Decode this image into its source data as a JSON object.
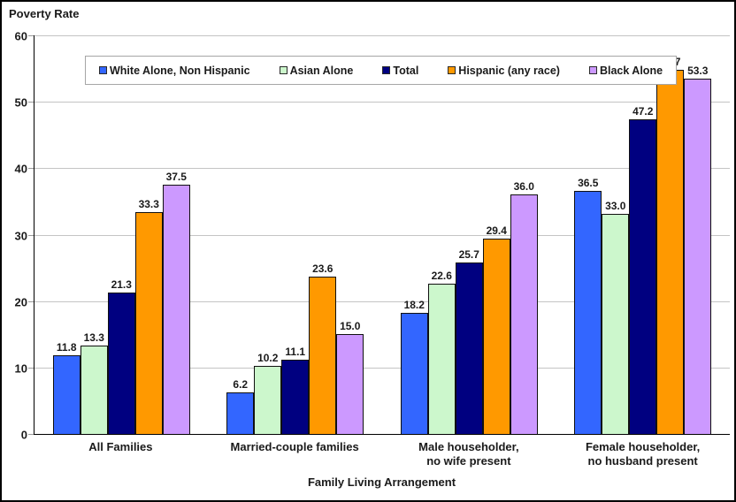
{
  "chart_data": {
    "type": "bar",
    "title": "Poverty Rate",
    "xlabel": "Family Living Arrangement",
    "ylabel": "Poverty Rate",
    "ylim": [
      0,
      60
    ],
    "yticks": [
      0,
      10,
      20,
      30,
      40,
      50,
      60
    ],
    "grid": true,
    "legend_position": "top",
    "value_labels_decimals": 1,
    "categories": [
      "All Families",
      "Married-couple families",
      "Male householder,\nno wife present",
      "Female householder,\nno husband present"
    ],
    "series": [
      {
        "name": "White Alone, Non Hispanic",
        "color": "#3366FF",
        "border": "#0b2a66",
        "values": [
          11.8,
          6.2,
          18.2,
          36.5
        ]
      },
      {
        "name": "Asian Alone",
        "color": "#CCF7CC",
        "border": "#5d7d5d",
        "values": [
          13.3,
          10.2,
          22.6,
          33.0
        ]
      },
      {
        "name": "Total",
        "color": "#000080",
        "border": "#000030",
        "values": [
          21.3,
          11.1,
          25.7,
          47.2
        ]
      },
      {
        "name": "Hispanic (any race)",
        "color": "#FF9900",
        "border": "#6b4a00",
        "values": [
          33.3,
          23.6,
          29.4,
          54.7
        ]
      },
      {
        "name": "Black Alone",
        "color": "#CC99FF",
        "border": "#5a4a78",
        "values": [
          37.5,
          15.0,
          36.0,
          53.3
        ]
      }
    ],
    "colors": {
      "gridline": "#c4c4c4",
      "axis": "#000000",
      "text": "#1a1a1a",
      "background": "#ffffff"
    }
  }
}
